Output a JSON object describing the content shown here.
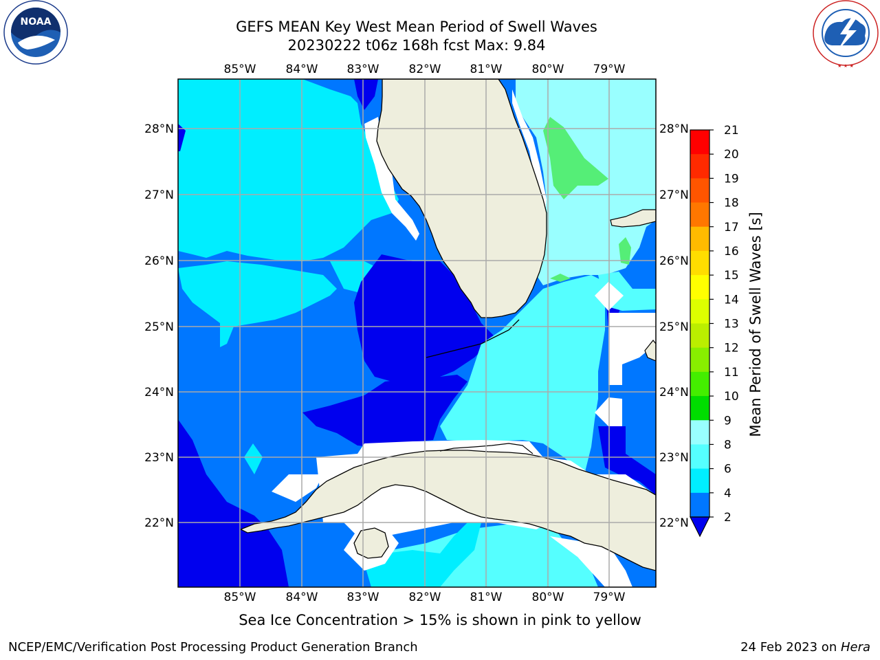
{
  "header": {
    "title": "GEFS MEAN Key West Mean Period of Swell Waves",
    "subtitle": "20230222 t06z 168h fcst   Max: 9.84"
  },
  "logos": {
    "left": {
      "text": "NOAA",
      "ring_text": "NATIONAL OCEANIC AND ATMOSPHERIC ADMINISTRATION · U.S. DEPARTMENT OF COMMERCE"
    },
    "right": {
      "ring_text": "NATIONAL WEATHER SERVICE"
    }
  },
  "map": {
    "longitude_labels": [
      "85°W",
      "84°W",
      "83°W",
      "82°W",
      "81°W",
      "80°W",
      "79°W"
    ],
    "latitude_labels": [
      "28°N",
      "27°N",
      "26°N",
      "25°N",
      "24°N",
      "23°N",
      "22°N"
    ],
    "ocean_colors": {
      "deep_blue": "#0000ee",
      "mid_blue": "#0077ff",
      "cyan": "#00eeff",
      "light_cyan": "#55ffff",
      "pale_cyan": "#99ffff",
      "green": "#55ee77",
      "land": "#eeeedd"
    }
  },
  "colorbar": {
    "label": "Mean Period of Swell Waves [s]",
    "ticks": [
      "21",
      "20",
      "19",
      "18",
      "17",
      "16",
      "15",
      "14",
      "13",
      "12",
      "11",
      "10",
      "9",
      "8",
      "6",
      "4",
      "2"
    ],
    "colors_top_to_bottom": [
      "#ff0000",
      "#ff2a00",
      "#ff5500",
      "#ff7700",
      "#ff9900",
      "#ffbb00",
      "#ffdd00",
      "#ffff00",
      "#ddff00",
      "#bbee00",
      "#88ee00",
      "#44ee00",
      "#00dd00",
      "#55ee77",
      "#99ffff",
      "#55ffff",
      "#00eeff",
      "#0077ff"
    ],
    "extend_color": "#0000ee"
  },
  "note": "Sea Ice Concentration > 15% is shown in pink to yellow",
  "footer": {
    "left": "NCEP/EMC/Verification Post Processing Product Generation Branch",
    "date": "24 Feb 2023 on ",
    "machine": "Hera"
  }
}
